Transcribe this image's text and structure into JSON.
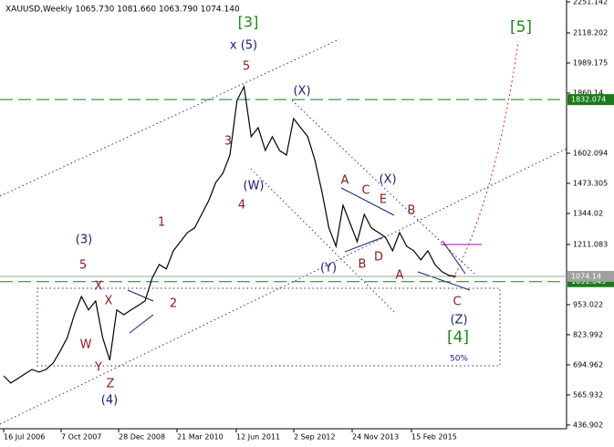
{
  "chart_data": {
    "type": "line",
    "title": "XAUUSD,Weekly  1065.730 1081.660 1063.790 1074.140",
    "x_tick_labels": [
      "16 Jul 2006",
      "7 Oct 2007",
      "28 Dec 2008",
      "21 Mar 2010",
      "12 Jun 2011",
      "2 Sep 2012",
      "24 Nov 2013",
      "15 Feb 2015"
    ],
    "series": [
      {
        "color": "#000000",
        "values": [
          648,
          617,
          636,
          656,
          675,
          664,
          675,
          703,
          754,
          812,
          910,
          988,
          930,
          969,
          812,
          715,
          930,
          910,
          930,
          949,
          969,
          1067,
          1125,
          1106,
          1184,
          1223,
          1262,
          1282,
          1340,
          1399,
          1477,
          1516,
          1594,
          1829,
          1888,
          1673,
          1712,
          1614,
          1673,
          1614,
          1594,
          1751,
          1712,
          1673,
          1575,
          1438,
          1282,
          1203,
          1379,
          1301,
          1223,
          1340,
          1282,
          1262,
          1242,
          1184,
          1262,
          1203,
          1184,
          1145,
          1184,
          1125,
          1094,
          1078,
          1074
        ]
      }
    ],
    "ylim": [
      421,
      2259
    ],
    "yticks": [
      2251.142,
      2118.202,
      1989.175,
      1860.14,
      1602.094,
      1473.305,
      1344.02,
      1211.083,
      953.022,
      823.992,
      694.962,
      565.932,
      436.902
    ],
    "hlines": [
      {
        "value": 1832.074,
        "color": "#1a7a1a",
        "style": "dashed"
      },
      {
        "value": 1051.645,
        "color": "#1a7a1a",
        "style": "dashed"
      },
      {
        "value": 1074.14,
        "color": "#a0a0a0",
        "style": "solid"
      }
    ],
    "annotations": [
      {
        "text": "[3]",
        "color": "#1a8a1a"
      },
      {
        "text": "x (5)",
        "color": "#1a1a7a"
      },
      {
        "text": "5",
        "color": "#8b1a1a"
      },
      {
        "text": "(X)",
        "color": "#1a1a7a"
      },
      {
        "text": "3",
        "color": "#8b1a1a"
      },
      {
        "text": "(W)",
        "color": "#1a1a7a"
      },
      {
        "text": "4",
        "color": "#8b1a1a"
      },
      {
        "text": "1",
        "color": "#8b1a1a"
      },
      {
        "text": "2",
        "color": "#8b1a1a"
      },
      {
        "text": "(3)",
        "color": "#1a1a7a"
      },
      {
        "text": "5",
        "color": "#8b1a1a"
      },
      {
        "text": "X",
        "color": "#8b1a1a"
      },
      {
        "text": "X",
        "color": "#8b1a1a"
      },
      {
        "text": "W",
        "color": "#8b1a1a"
      },
      {
        "text": "Y",
        "color": "#8b1a1a"
      },
      {
        "text": "Z",
        "color": "#8b1a1a"
      },
      {
        "text": "(4)",
        "color": "#1a1a7a"
      },
      {
        "text": "A",
        "color": "#8b1a1a"
      },
      {
        "text": "C",
        "color": "#8b1a1a"
      },
      {
        "text": "(X)",
        "color": "#1a1a7a"
      },
      {
        "text": "E",
        "color": "#8b1a1a"
      },
      {
        "text": "B",
        "color": "#8b1a1a"
      },
      {
        "text": "(Y)",
        "color": "#1a1a7a"
      },
      {
        "text": "B",
        "color": "#8b1a1a"
      },
      {
        "text": "D",
        "color": "#8b1a1a"
      },
      {
        "text": "A",
        "color": "#8b1a1a"
      },
      {
        "text": "C",
        "color": "#8b1a1a"
      },
      {
        "text": "(Z)",
        "color": "#1a1a7a"
      },
      {
        "text": "[4]",
        "color": "#1a8a1a"
      },
      {
        "text": "50%",
        "color": "#1a1a7a"
      },
      {
        "text": "[5]",
        "color": "#1a8a1a"
      }
    ]
  }
}
